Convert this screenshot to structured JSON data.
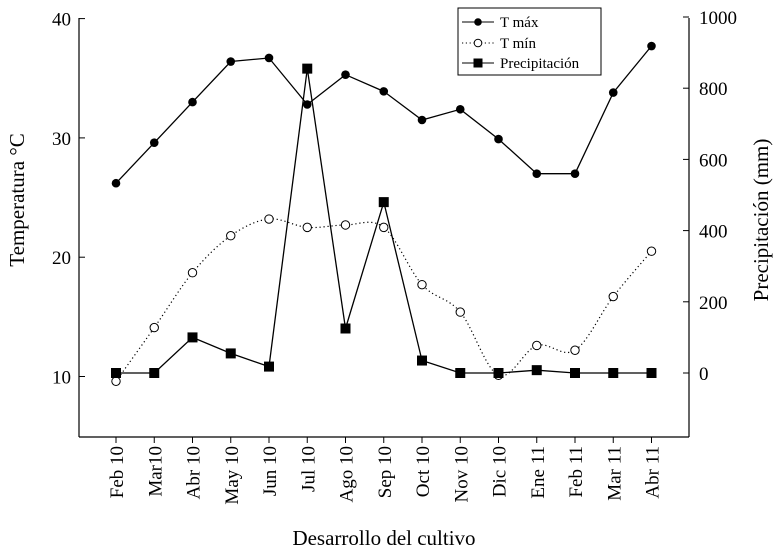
{
  "chart_data": {
    "type": "line",
    "categories": [
      "Feb 10",
      "Mar10",
      "Abr 10",
      "May 10",
      "Jun 10",
      "Jul 10",
      "Ago 10",
      "Sep 10",
      "Oct 10",
      "Nov 10",
      "Dic 10",
      "Ene 11",
      "Feb 11",
      "Mar 11",
      "Abr 11"
    ],
    "xlabel": "Desarrollo del cultivo",
    "ylabel_left": "Temperatura °C",
    "ylabel_right": "Precipitación (mm)",
    "ylim_left": [
      5,
      40
    ],
    "ylim_right": [
      -180,
      1000
    ],
    "yticks_left": [
      10,
      20,
      30,
      40
    ],
    "yticks_right": [
      0,
      200,
      400,
      600,
      800,
      1000
    ],
    "legend_position": "top-right",
    "series": [
      {
        "name": "T máx",
        "axis": "left",
        "style": "solid-filled-circle",
        "color": "#000000",
        "values": [
          26.2,
          29.6,
          33.0,
          36.4,
          36.7,
          32.8,
          35.3,
          33.9,
          31.5,
          32.4,
          29.9,
          27.0,
          27.0,
          33.8,
          37.7
        ]
      },
      {
        "name": "T mín",
        "axis": "left",
        "style": "dotted-open-circle",
        "color": "#000000",
        "values": [
          9.6,
          14.1,
          18.7,
          21.8,
          23.2,
          22.5,
          22.7,
          22.5,
          17.7,
          15.4,
          10.1,
          12.6,
          12.2,
          16.7,
          20.5
        ]
      },
      {
        "name": "Precipitación",
        "axis": "right",
        "style": "solid-filled-square",
        "color": "#000000",
        "values": [
          0,
          0,
          100,
          55,
          18,
          855,
          125,
          480,
          35,
          0,
          0,
          8,
          0,
          0,
          0
        ]
      }
    ]
  }
}
